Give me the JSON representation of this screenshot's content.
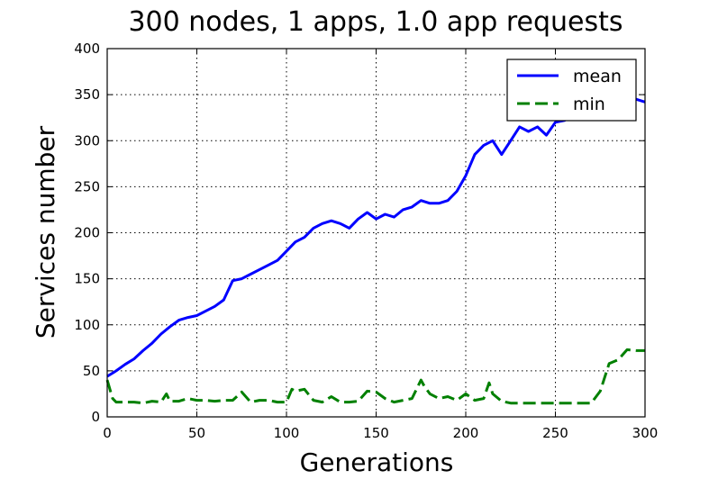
{
  "chart_data": {
    "type": "line",
    "title": "300 nodes, 1 apps, 1.0 app requests",
    "xlabel": "Generations",
    "ylabel": "Services number",
    "xlim": [
      0,
      300
    ],
    "ylim": [
      0,
      400
    ],
    "xticks": [
      0,
      50,
      100,
      150,
      200,
      250,
      300
    ],
    "yticks": [
      0,
      50,
      100,
      150,
      200,
      250,
      300,
      350,
      400
    ],
    "grid": true,
    "legend_position": "top-right",
    "series": [
      {
        "name": "mean",
        "color": "#0000ff",
        "style": "solid",
        "x": [
          0,
          5,
          10,
          15,
          20,
          25,
          30,
          35,
          40,
          45,
          50,
          55,
          60,
          65,
          70,
          75,
          80,
          85,
          90,
          95,
          100,
          105,
          110,
          115,
          120,
          125,
          130,
          135,
          140,
          145,
          150,
          155,
          160,
          165,
          170,
          175,
          180,
          185,
          190,
          195,
          200,
          205,
          210,
          215,
          220,
          225,
          230,
          235,
          240,
          245,
          250,
          255,
          260,
          265,
          270,
          275,
          280,
          285,
          290,
          295,
          300
        ],
        "y": [
          44,
          50,
          57,
          63,
          72,
          80,
          90,
          98,
          105,
          108,
          110,
          115,
          120,
          127,
          148,
          150,
          155,
          160,
          165,
          170,
          180,
          190,
          195,
          205,
          210,
          213,
          210,
          205,
          215,
          222,
          215,
          220,
          217,
          225,
          228,
          235,
          232,
          232,
          235,
          245,
          262,
          285,
          295,
          300,
          285,
          300,
          315,
          310,
          315,
          306,
          320,
          322,
          328,
          330,
          333,
          335,
          340,
          342,
          338,
          345,
          342
        ]
      },
      {
        "name": "min",
        "color": "#008000",
        "style": "dashed",
        "x": [
          0,
          3,
          5,
          10,
          15,
          20,
          25,
          30,
          33,
          35,
          40,
          45,
          50,
          55,
          60,
          65,
          70,
          75,
          80,
          85,
          90,
          95,
          100,
          103,
          105,
          110,
          115,
          120,
          125,
          130,
          135,
          140,
          145,
          150,
          155,
          160,
          165,
          170,
          175,
          177,
          180,
          185,
          190,
          195,
          200,
          205,
          210,
          213,
          215,
          220,
          225,
          230,
          235,
          240,
          245,
          250,
          255,
          260,
          265,
          270,
          275,
          280,
          285,
          290,
          295,
          300
        ],
        "y": [
          40,
          20,
          16,
          16,
          16,
          15,
          17,
          16,
          25,
          17,
          17,
          20,
          18,
          18,
          17,
          18,
          18,
          27,
          16,
          18,
          18,
          16,
          16,
          30,
          28,
          30,
          18,
          16,
          22,
          16,
          16,
          17,
          28,
          27,
          20,
          16,
          18,
          20,
          40,
          33,
          25,
          20,
          22,
          18,
          25,
          18,
          20,
          37,
          25,
          17,
          15,
          15,
          15,
          15,
          15,
          15,
          15,
          15,
          15,
          15,
          28,
          58,
          62,
          73,
          72,
          72
        ]
      }
    ]
  }
}
